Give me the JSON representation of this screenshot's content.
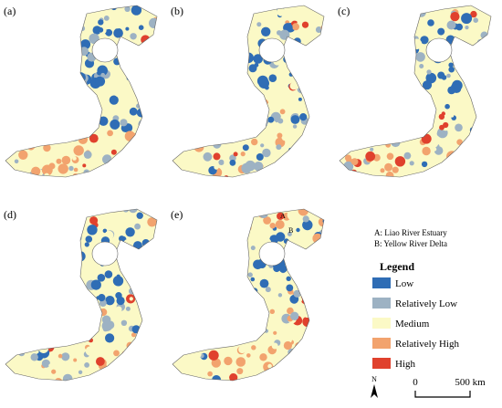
{
  "panels": [
    "(a)",
    "(b)",
    "(c)",
    "(d)",
    "(e)"
  ],
  "map_labels": [
    "A",
    "B"
  ],
  "notes": [
    "A: Liao River Estuary",
    "B: Yellow River Delta"
  ],
  "legend": {
    "title": "Legend",
    "items": [
      {
        "name": "Low",
        "color": "#2f6db5"
      },
      {
        "name": "Relatively Low",
        "color": "#9db2c3"
      },
      {
        "name": "Medium",
        "color": "#fbf9c6"
      },
      {
        "name": "Relatively High",
        "color": "#f2a36e"
      },
      {
        "name": "High",
        "color": "#e0412d"
      }
    ]
  },
  "north": "N",
  "scale": {
    "start": "0",
    "end": "500 km"
  }
}
